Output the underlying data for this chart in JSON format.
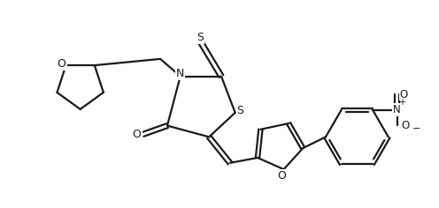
{
  "bg_color": "#ffffff",
  "line_color": "#1a1a1a",
  "line_width": 1.6,
  "figsize": [
    4.96,
    2.36
  ],
  "dpi": 100,
  "xlim": [
    0,
    5.0
  ],
  "ylim": [
    0,
    2.4
  ]
}
